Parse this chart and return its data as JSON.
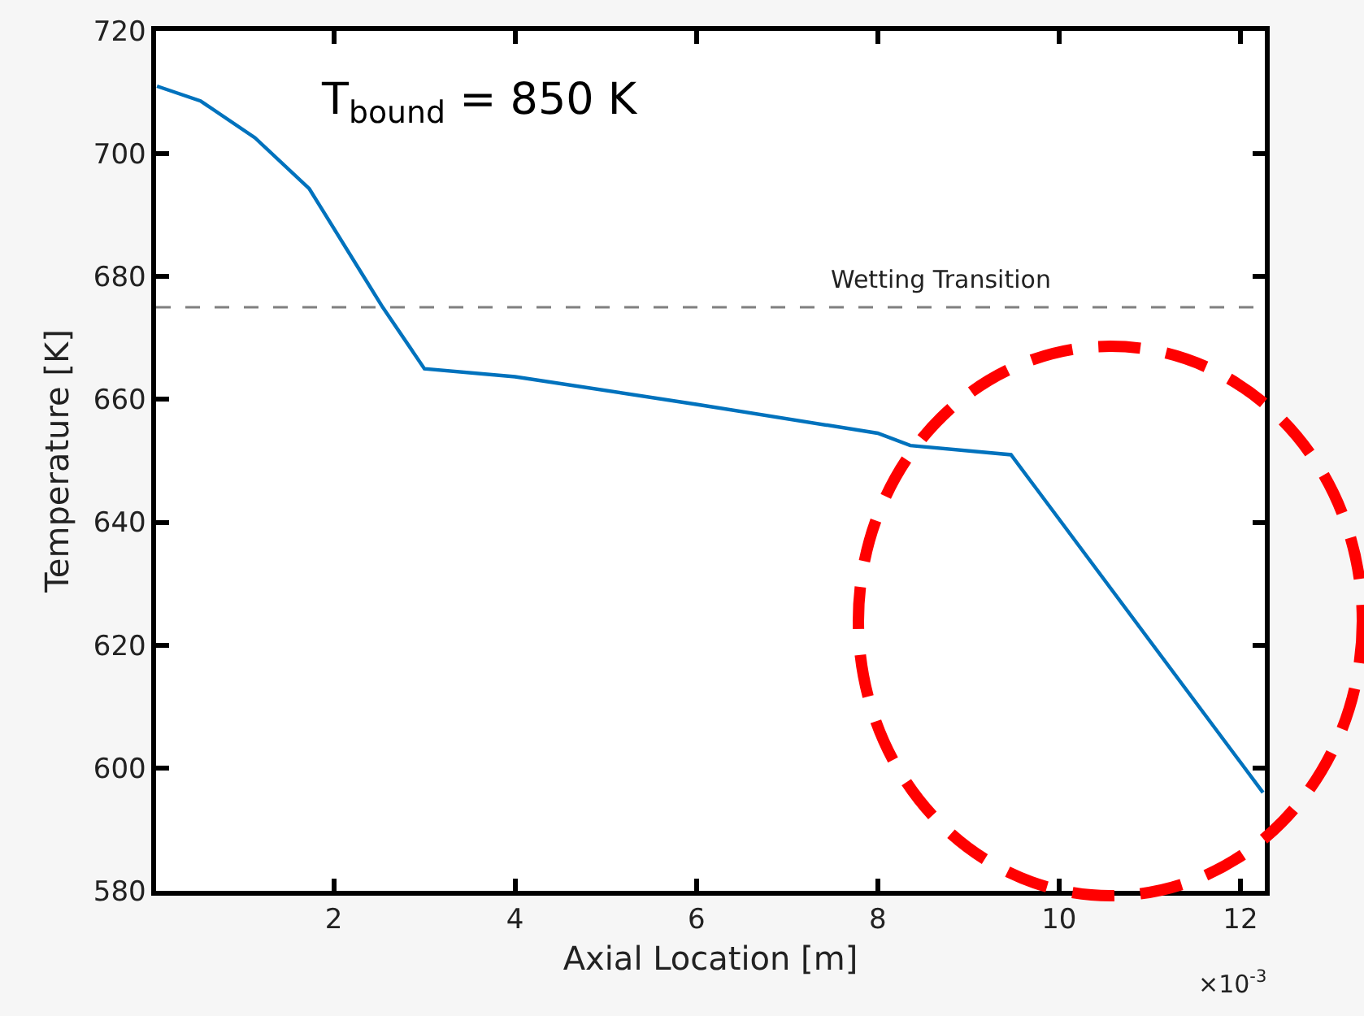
{
  "chart_data": {
    "type": "line",
    "xlabel": "Axial Location [m]",
    "ylabel": "Temperature [K]",
    "annotations": [
      "T$_{bound}$ = 850 K",
      "×10$^{-3}$"
    ],
    "series": [
      {
        "color": "#0072bd",
        "x": [
          0.05,
          0.53,
          1.13,
          1.73,
          2.33,
          2.54,
          3.0,
          4,
          6,
          8,
          8.36,
          9.47,
          12.25
        ],
        "values": [
          711,
          708.6,
          702.6,
          694.3,
          680,
          675,
          665,
          663.7,
          659.2,
          654.5,
          652.5,
          651,
          596
        ]
      }
    ],
    "xlim": [
      0.04,
      12.27
    ],
    "xticks": [
      2,
      4,
      6,
      8,
      10,
      12
    ],
    "ylim": [
      580,
      720
    ],
    "yticks": [
      580,
      600,
      620,
      640,
      660,
      680,
      700,
      720
    ],
    "ref_lines": [
      {
        "axis": "y",
        "value": 675,
        "label": "Wetting Transition",
        "color": "#808080",
        "line_style": "dashed"
      }
    ],
    "marker": "none",
    "line_style": "solid"
  }
}
